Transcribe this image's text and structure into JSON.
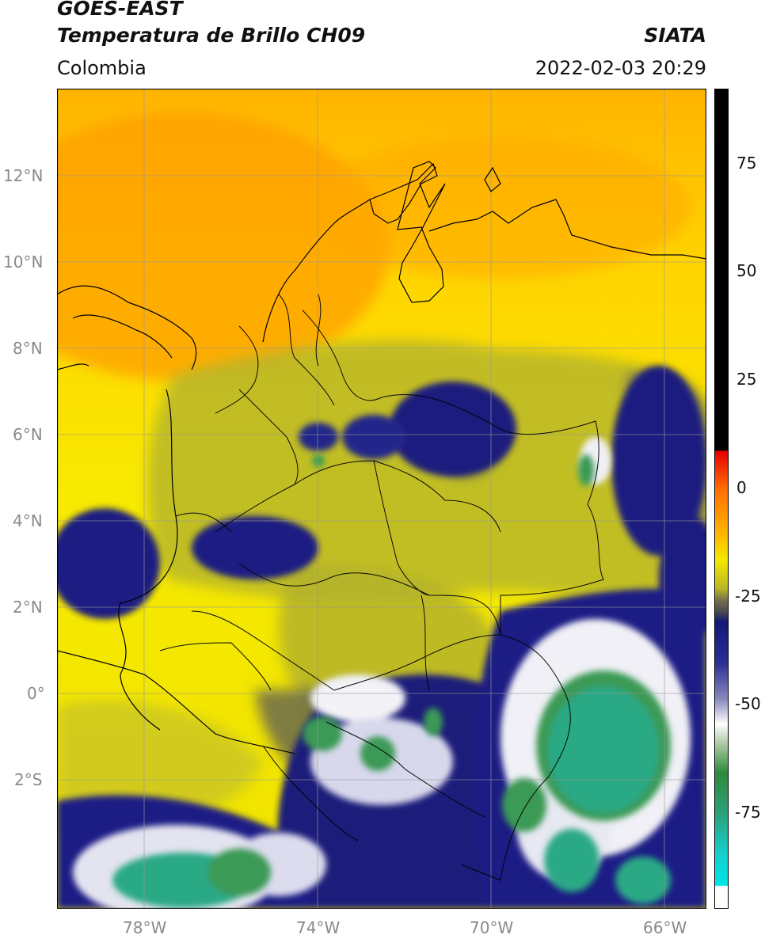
{
  "header": {
    "satellite": "GOES-EAST",
    "product": "Temperatura de Brillo CH09",
    "region": "Colombia",
    "agency": "SIATA",
    "datetime": "2022-02-03 20:29"
  },
  "map": {
    "lat_ticks": [
      "12°N",
      "10°N",
      "8°N",
      "6°N",
      "4°N",
      "2°N",
      "0°",
      "2°S"
    ],
    "lon_ticks": [
      "78°W",
      "74°W",
      "70°W",
      "66°W"
    ],
    "lat_values": [
      12,
      10,
      8,
      6,
      4,
      2,
      0,
      -2
    ],
    "lon_values": [
      -78,
      -74,
      -70,
      -66
    ],
    "colors": {
      "warm": "#ffa200",
      "mid": "#f2e600",
      "olive": "#b8b824",
      "gray": "#5a5a55",
      "navy": "#1a1a80",
      "white": "#f4f4f4",
      "green": "#3a9a4a",
      "teal": "#2aaa8a",
      "coast": "#000000"
    }
  },
  "colorbar": {
    "labels": [
      "75",
      "50",
      "25",
      "0",
      "-25",
      "-50",
      "-75"
    ],
    "values": [
      75,
      50,
      25,
      0,
      -25,
      -50,
      -75
    ],
    "range": [
      -95,
      90
    ]
  }
}
